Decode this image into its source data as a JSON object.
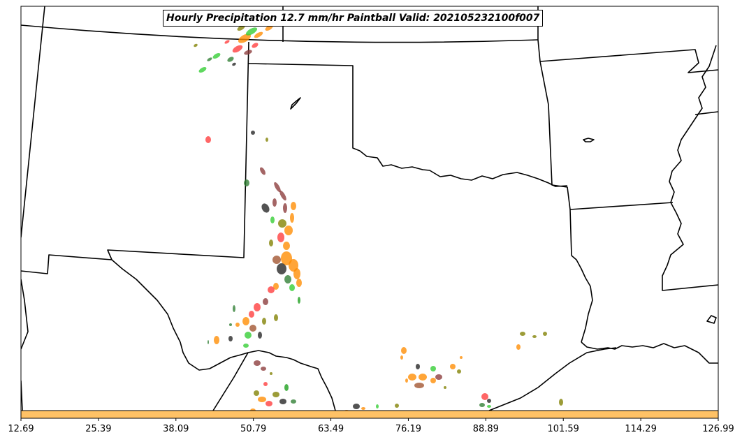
{
  "title": "Hourly Precipitation 12.7 mm/hr Paintball Valid: 202105232100f007",
  "colorbar": {
    "fill_color": "#ffc266",
    "tick_labels": [
      "12.69",
      "25.39",
      "38.09",
      "50.79",
      "63.49",
      "76.19",
      "88.89",
      "101.59",
      "114.29",
      "126.99"
    ]
  },
  "member_colors": [
    "#2e7d32",
    "#32cd32",
    "#ff3b3b",
    "#ff8c00",
    "#8b3a3a",
    "#808000",
    "#222222",
    "#a0522d",
    "#1a9e1a"
  ]
}
